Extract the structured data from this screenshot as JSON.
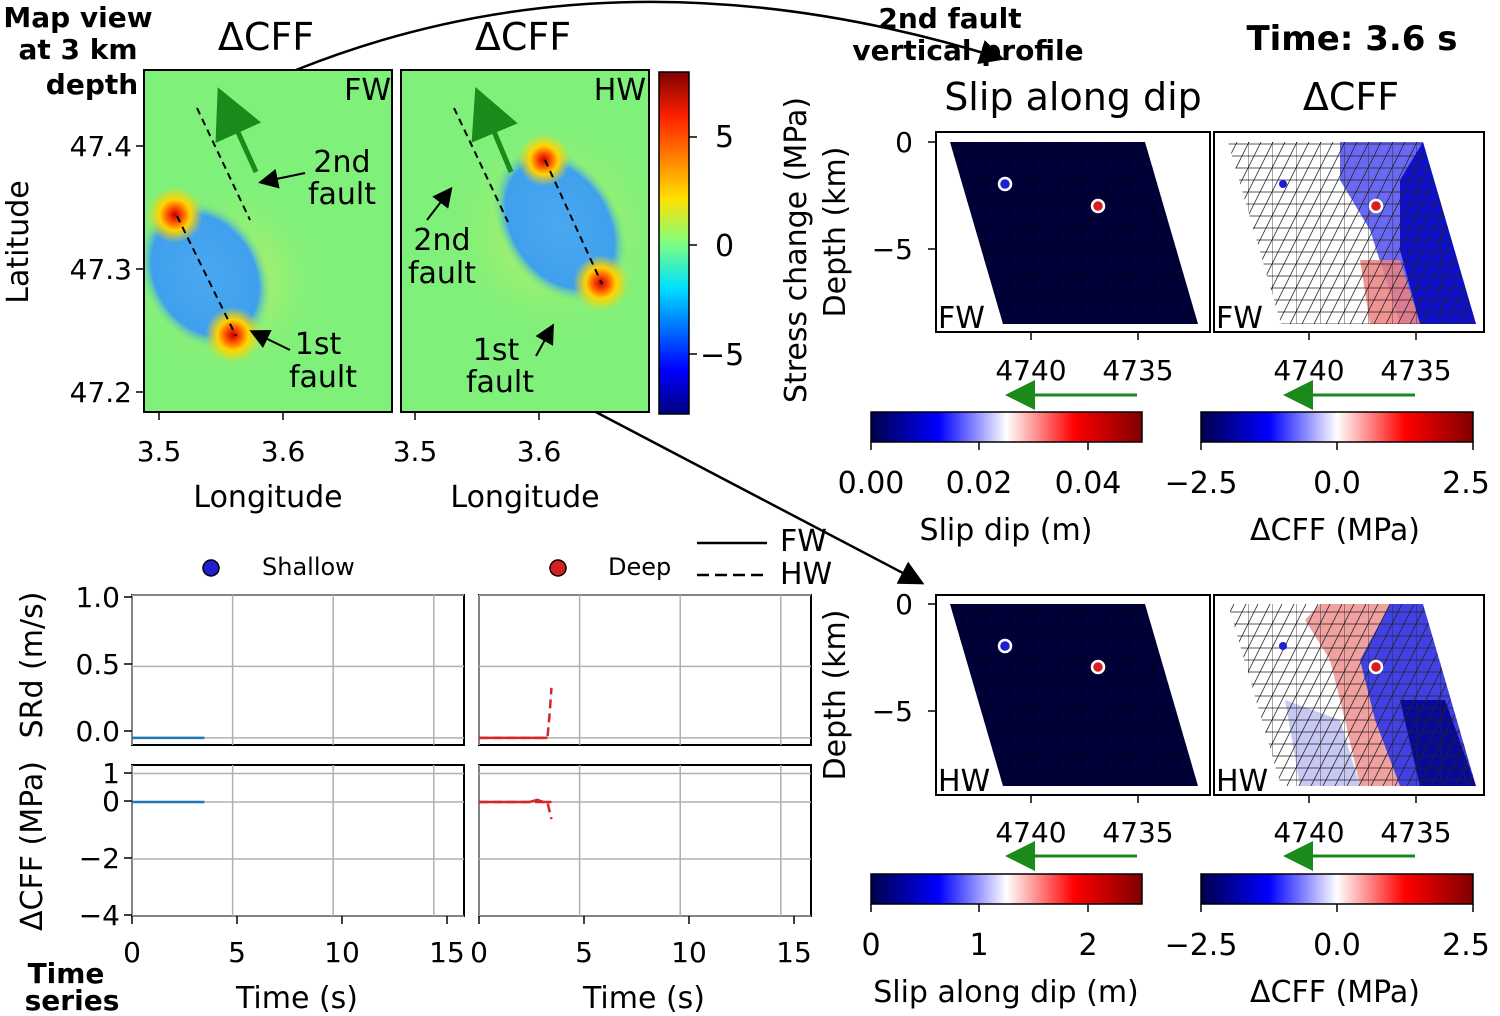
{
  "header": {
    "map_view": [
      "Map view",
      "at 3 km",
      "depth"
    ],
    "second_fault_profile": [
      "2nd fault",
      "vertical profile"
    ],
    "time_label": "Time: 3.6 s",
    "time_series": [
      "Time",
      "series"
    ]
  },
  "colors": {
    "map_bg": "#7ff07a",
    "fault_line": "#000000",
    "arrow_green": "#1a8a1a",
    "shallow": "#1f1fd0",
    "deep": "#d62020",
    "line_blue": "#1f77b4",
    "line_red": "#d62728",
    "grid": "#b0b0b0",
    "slip_fill": "#00003a"
  },
  "map_panels": [
    {
      "title": "ΔCFF",
      "tag": "FW",
      "label_2nd": [
        "2nd",
        "fault"
      ],
      "label_1st": [
        "1st",
        "fault"
      ],
      "xlabel": "Longitude"
    },
    {
      "title": "ΔCFF",
      "tag": "HW",
      "label_2nd": [
        "2nd",
        "fault"
      ],
      "label_1st": [
        "1st",
        "fault"
      ],
      "xlabel": "Longitude"
    }
  ],
  "map_axes": {
    "ylabel": "Latitude",
    "y_ticks": [
      "47.4",
      "47.3",
      "47.2"
    ],
    "x_ticks": [
      "3.5",
      "3.6"
    ],
    "colorbar_ticks": [
      "5",
      "0",
      "−5"
    ],
    "colorbar_label": "Stress change (MPa)"
  },
  "profile_titles": {
    "slip": "Slip along dip",
    "cff": "ΔCFF"
  },
  "profile_axes": {
    "ylabel": "Depth (km)",
    "y_ticks": [
      "0",
      "−5"
    ],
    "x_ticks": [
      "4740",
      "4735"
    ]
  },
  "profiles": {
    "fw_slip_tag": "FW",
    "fw_cff_tag": "FW",
    "hw_slip_tag": "HW",
    "hw_cff_tag": "HW"
  },
  "colorbars": {
    "top_slip": {
      "label": "Slip dip (m)",
      "ticks": [
        "0.00",
        "0.02",
        "0.04"
      ]
    },
    "top_cff": {
      "label": "ΔCFF (MPa)",
      "ticks": [
        "−2.5",
        "0.0",
        "2.5"
      ]
    },
    "bottom_slip": {
      "label": "Slip along dip (m)",
      "ticks": [
        "0",
        "1",
        "2"
      ]
    },
    "bottom_cff": {
      "label": "ΔCFF (MPa)",
      "ticks": [
        "−2.5",
        "0.0",
        "2.5"
      ]
    }
  },
  "legend": {
    "shallow": "Shallow",
    "deep": "Deep",
    "fw": "FW",
    "hw": "HW"
  },
  "time_series_axes": {
    "srd_label": "SRd (m/s)",
    "cff_label": "ΔCFF (MPa)",
    "srd_ticks": [
      "1.0",
      "0.5",
      "0.0"
    ],
    "cff_ticks": [
      "1",
      "0",
      "−2",
      "−4"
    ],
    "x_ticks": [
      "0",
      "5",
      "10",
      "15"
    ],
    "xlabel": "Time (s)"
  },
  "chart_data": [
    {
      "type": "line",
      "panel": "SRd shallow",
      "ylabel": "SRd (m/s)",
      "xlim": [
        0,
        16.5
      ],
      "ylim": [
        -0.05,
        1.0
      ],
      "series": [
        {
          "name": "FW",
          "x": [
            0,
            3.6
          ],
          "y": [
            0.0,
            0.0
          ]
        }
      ]
    },
    {
      "type": "line",
      "panel": "SRd deep",
      "xlim": [
        0,
        16.5
      ],
      "ylim": [
        -0.05,
        1.0
      ],
      "series": [
        {
          "name": "FW",
          "x": [
            0,
            3.4
          ],
          "y": [
            0.0,
            0.0
          ]
        },
        {
          "name": "HW",
          "x": [
            0,
            3.4,
            3.5,
            3.6
          ],
          "y": [
            0.0,
            0.0,
            0.15,
            0.35
          ]
        }
      ]
    },
    {
      "type": "line",
      "panel": "ΔCFF shallow",
      "ylabel": "ΔCFF (MPa)",
      "xlim": [
        0,
        16.5
      ],
      "ylim": [
        -4.0,
        1.3
      ],
      "series": [
        {
          "name": "FW",
          "x": [
            0,
            3.6
          ],
          "y": [
            0.0,
            0.0
          ]
        }
      ]
    },
    {
      "type": "line",
      "panel": "ΔCFF deep",
      "xlim": [
        0,
        16.5
      ],
      "ylim": [
        -4.0,
        1.3
      ],
      "series": [
        {
          "name": "FW",
          "x": [
            0,
            2.5,
            2.9,
            3.2,
            3.6
          ],
          "y": [
            0.0,
            0.0,
            0.08,
            0.0,
            0.0
          ]
        },
        {
          "name": "HW",
          "x": [
            0,
            3.4,
            3.5,
            3.6
          ],
          "y": [
            0.0,
            0.0,
            -0.3,
            -0.6
          ]
        }
      ]
    }
  ]
}
